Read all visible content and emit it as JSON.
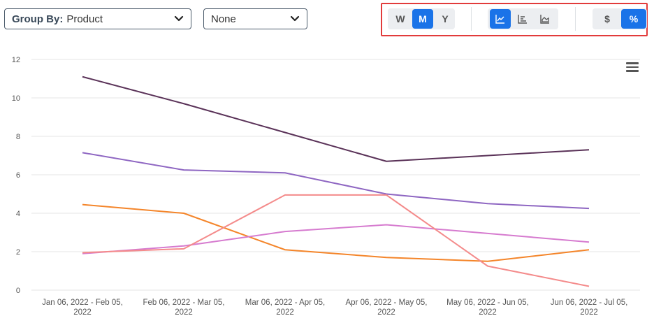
{
  "controls": {
    "group_by_label": "Group By:",
    "group_by_value": "Product",
    "secondary_value": "None",
    "period_buttons": [
      {
        "label": "W",
        "active": false
      },
      {
        "label": "M",
        "active": true
      },
      {
        "label": "Y",
        "active": false
      }
    ],
    "chart_type_buttons": [
      {
        "icon": "line-chart-icon",
        "active": true
      },
      {
        "icon": "bar-chart-icon",
        "active": false
      },
      {
        "icon": "area-chart-icon",
        "active": false
      }
    ],
    "unit_buttons": [
      {
        "label": "$",
        "active": false
      },
      {
        "label": "%",
        "active": true
      }
    ],
    "accent_color": "#1a73e8",
    "highlight_color": "#e23b3b",
    "menu_icon": "hamburger-menu-icon"
  },
  "chart_data": {
    "type": "line",
    "categories": [
      [
        "Jan 06, 2022 - Feb 05,",
        "2022"
      ],
      [
        "Feb 06, 2022 - Mar 05,",
        "2022"
      ],
      [
        "Mar 06, 2022 - Apr 05,",
        "2022"
      ],
      [
        "Apr 06, 2022 - May 05,",
        "2022"
      ],
      [
        "May 06, 2022 - Jun 05,",
        "2022"
      ],
      [
        "Jun 06, 2022 - Jul 05,",
        "2022"
      ]
    ],
    "ylim": [
      0,
      12
    ],
    "yticks": [
      "0",
      "2",
      "4",
      "6",
      "8",
      "10",
      "12"
    ],
    "grid": true,
    "series": [
      {
        "color": "#5a3258",
        "values": [
          11.1,
          9.7,
          8.2,
          6.7,
          7.0,
          7.3
        ]
      },
      {
        "color": "#8e66c2",
        "values": [
          7.15,
          6.25,
          6.1,
          5.0,
          4.5,
          4.25
        ]
      },
      {
        "color": "#f4852a",
        "values": [
          4.45,
          4.0,
          2.1,
          1.7,
          1.5,
          2.1
        ]
      },
      {
        "color": "#d67bcf",
        "values": [
          1.9,
          2.3,
          3.05,
          3.4,
          2.95,
          2.5
        ]
      },
      {
        "color": "#f48b8b",
        "values": [
          1.95,
          2.15,
          4.95,
          4.95,
          1.25,
          0.2
        ]
      }
    ]
  }
}
